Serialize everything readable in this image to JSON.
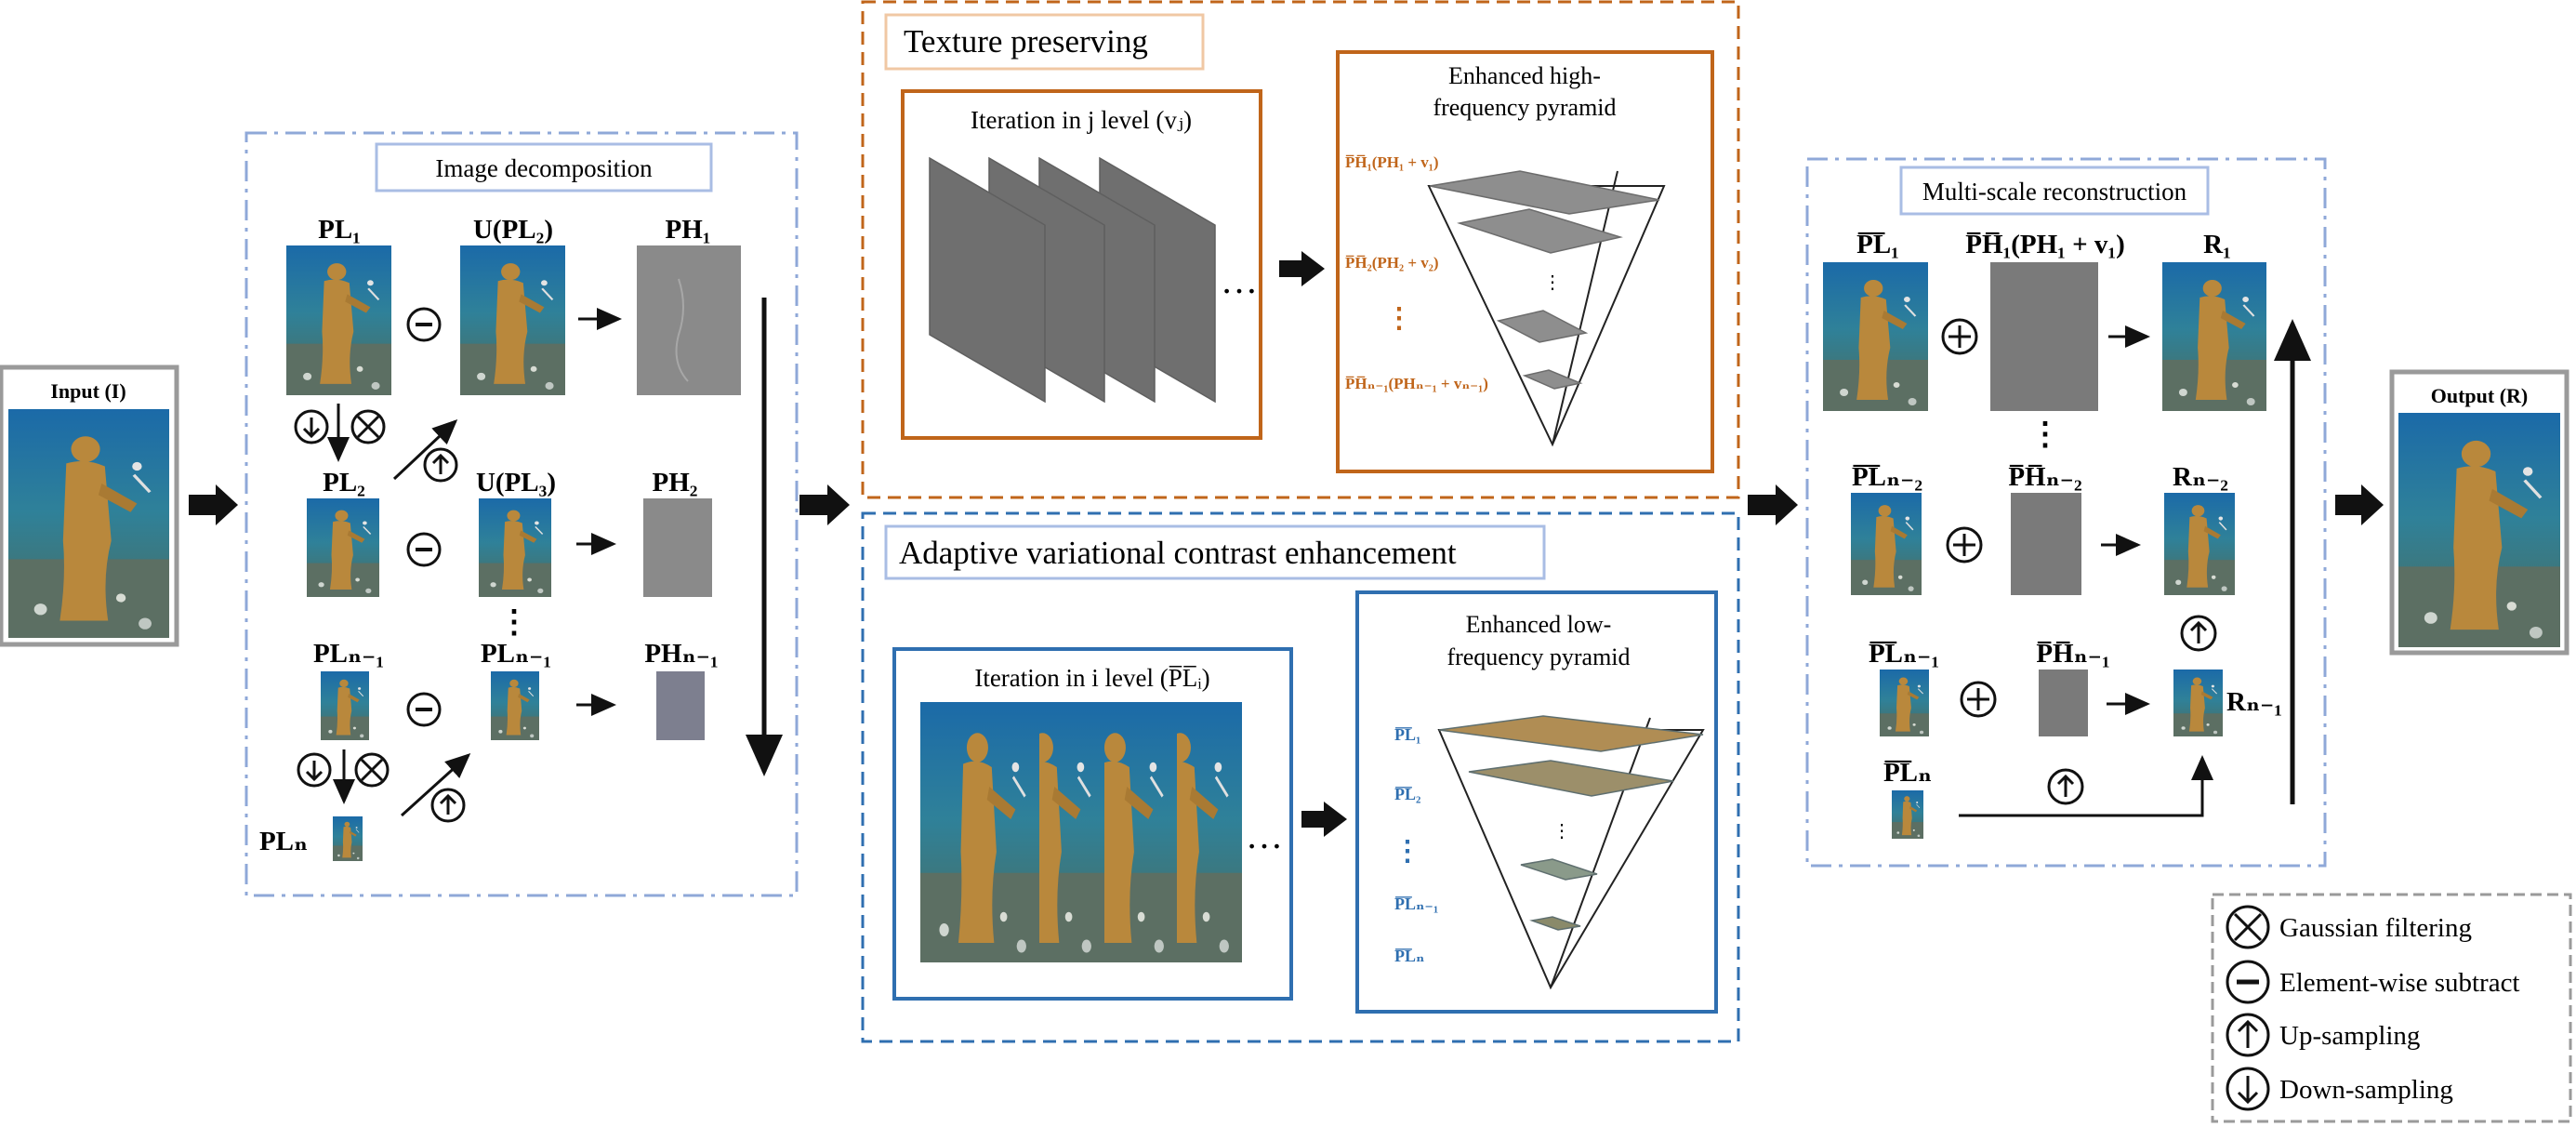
{
  "input": {
    "label": "Input (I)"
  },
  "output": {
    "label": "Output (R)"
  },
  "decomposition": {
    "title": "Image decomposition",
    "pl1": "PL₁",
    "u_pl2": "U(PL₂)",
    "ph1": "PH₁",
    "pl2": "PL₂",
    "u_pl3": "U(PL₃)",
    "ph2": "PH₂",
    "pln1": "PLₙ₋₁",
    "pln1b": "PLₙ₋₁",
    "phn1": "PHₙ₋₁",
    "pln": "PLₙ"
  },
  "texture": {
    "title": "Texture preserving",
    "iter_label": "Iteration in j level (vⱼ)",
    "pyr_title_1": "Enhanced high-",
    "pyr_title_2": "frequency pyramid",
    "levels": [
      "P̅H̅₁(PH₁ + v₁)",
      "P̅H̅₂(PH₂ + v₂)",
      "⋮",
      "P̅H̅ₙ₋₁(PHₙ₋₁ + vₙ₋₁)"
    ]
  },
  "contrast": {
    "title": "Adaptive variational contrast enhancement",
    "iter_label": "Iteration in i level (P̅L̅ᵢ)",
    "pyr_title_1": "Enhanced low-",
    "pyr_title_2": "frequency pyramid",
    "levels": [
      "P̅L̅₁",
      "P̅L̅₂",
      "⋮",
      "P̅L̅ₙ₋₁",
      "P̅L̅ₙ"
    ]
  },
  "reconstruction": {
    "title": "Multi-scale reconstruction",
    "pl1": "P̅L̅₁",
    "ph1": "P̅H̅₁(PH₁ + v₁)",
    "r1": "R₁",
    "pln2": "P̅L̅ₙ₋₂",
    "phn2": "P̅H̅ₙ₋₂",
    "rn2": "Rₙ₋₂",
    "pln1": "P̅L̅ₙ₋₁",
    "phn1": "P̅H̅ₙ₋₁",
    "rn1": "Rₙ₋₁",
    "pln": "P̅L̅ₙ"
  },
  "legend": {
    "items": [
      "Gaussian filtering",
      "Element-wise subtract",
      "Up-sampling",
      "Down-sampling"
    ]
  },
  "colors": {
    "orange": "#c0651a",
    "blue_box": "#2f6fb0",
    "dash_blue": "#8fa8d8",
    "title_box_blue": "#a9bde4",
    "title_box_orange": "#f0c8a4",
    "sea": "#2f6e86",
    "statue": "#b2873a",
    "gray": "#7c7c7c"
  }
}
